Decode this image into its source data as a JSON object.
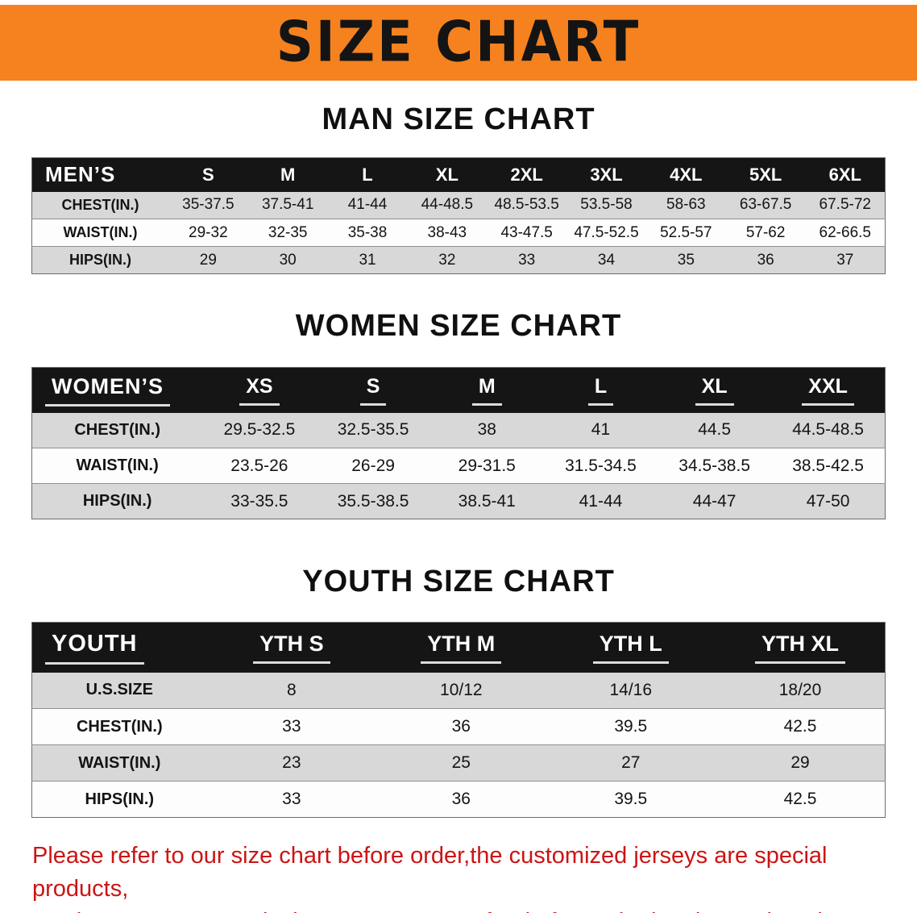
{
  "banner": {
    "title": "SIZE CHART",
    "bg_color": "#F5821F",
    "text_color": "#141414"
  },
  "sections": [
    {
      "heading": "MAN SIZE CHART",
      "table": {
        "header": [
          "MEN’S",
          "S",
          "M",
          "L",
          "XL",
          "2XL",
          "3XL",
          "4XL",
          "5XL",
          "6XL"
        ],
        "rows": [
          [
            "CHEST(IN.)",
            "35-37.5",
            "37.5-41",
            "41-44",
            "44-48.5",
            "48.5-53.5",
            "53.5-58",
            "58-63",
            "63-67.5",
            "67.5-72"
          ],
          [
            "WAIST(IN.)",
            "29-32",
            "32-35",
            "35-38",
            "38-43",
            "43-47.5",
            "47.5-52.5",
            "52.5-57",
            "57-62",
            "62-66.5"
          ],
          [
            "HIPS(IN.)",
            "29",
            "30",
            "31",
            "32",
            "33",
            "34",
            "35",
            "36",
            "37"
          ]
        ]
      }
    },
    {
      "heading": "WOMEN SIZE CHART",
      "table": {
        "header": [
          "WOMEN’S",
          "XS",
          "S",
          "M",
          "L",
          "XL",
          "XXL"
        ],
        "rows": [
          [
            "CHEST(IN.)",
            "29.5-32.5",
            "32.5-35.5",
            "38",
            "41",
            "44.5",
            "44.5-48.5"
          ],
          [
            "WAIST(IN.)",
            "23.5-26",
            "26-29",
            "29-31.5",
            "31.5-34.5",
            "34.5-38.5",
            "38.5-42.5"
          ],
          [
            "HIPS(IN.)",
            "33-35.5",
            "35.5-38.5",
            "38.5-41",
            "41-44",
            "44-47",
            "47-50"
          ]
        ]
      }
    },
    {
      "heading": "YOUTH SIZE CHART",
      "table": {
        "header": [
          "YOUTH",
          "YTH S",
          "YTH M",
          "YTH L",
          "YTH XL"
        ],
        "rows": [
          [
            "U.S.SIZE",
            "8",
            "10/12",
            "14/16",
            "18/20"
          ],
          [
            "CHEST(IN.)",
            "33",
            "36",
            "39.5",
            "42.5"
          ],
          [
            "WAIST(IN.)",
            "23",
            "25",
            "27",
            "29"
          ],
          [
            "HIPS(IN.)",
            "33",
            "36",
            "39.5",
            "42.5"
          ]
        ]
      }
    }
  ],
  "footer": {
    "lines": [
      "Please refer to our size chart before order,the customized jerseys are special products,",
      "we don't accept cancel, change, teturn or refund after order has been placed!"
    ],
    "color": "#CC1414"
  },
  "style_colors": {
    "table_header_bg": "#151515",
    "row_stripe": "#D8D8D8"
  }
}
